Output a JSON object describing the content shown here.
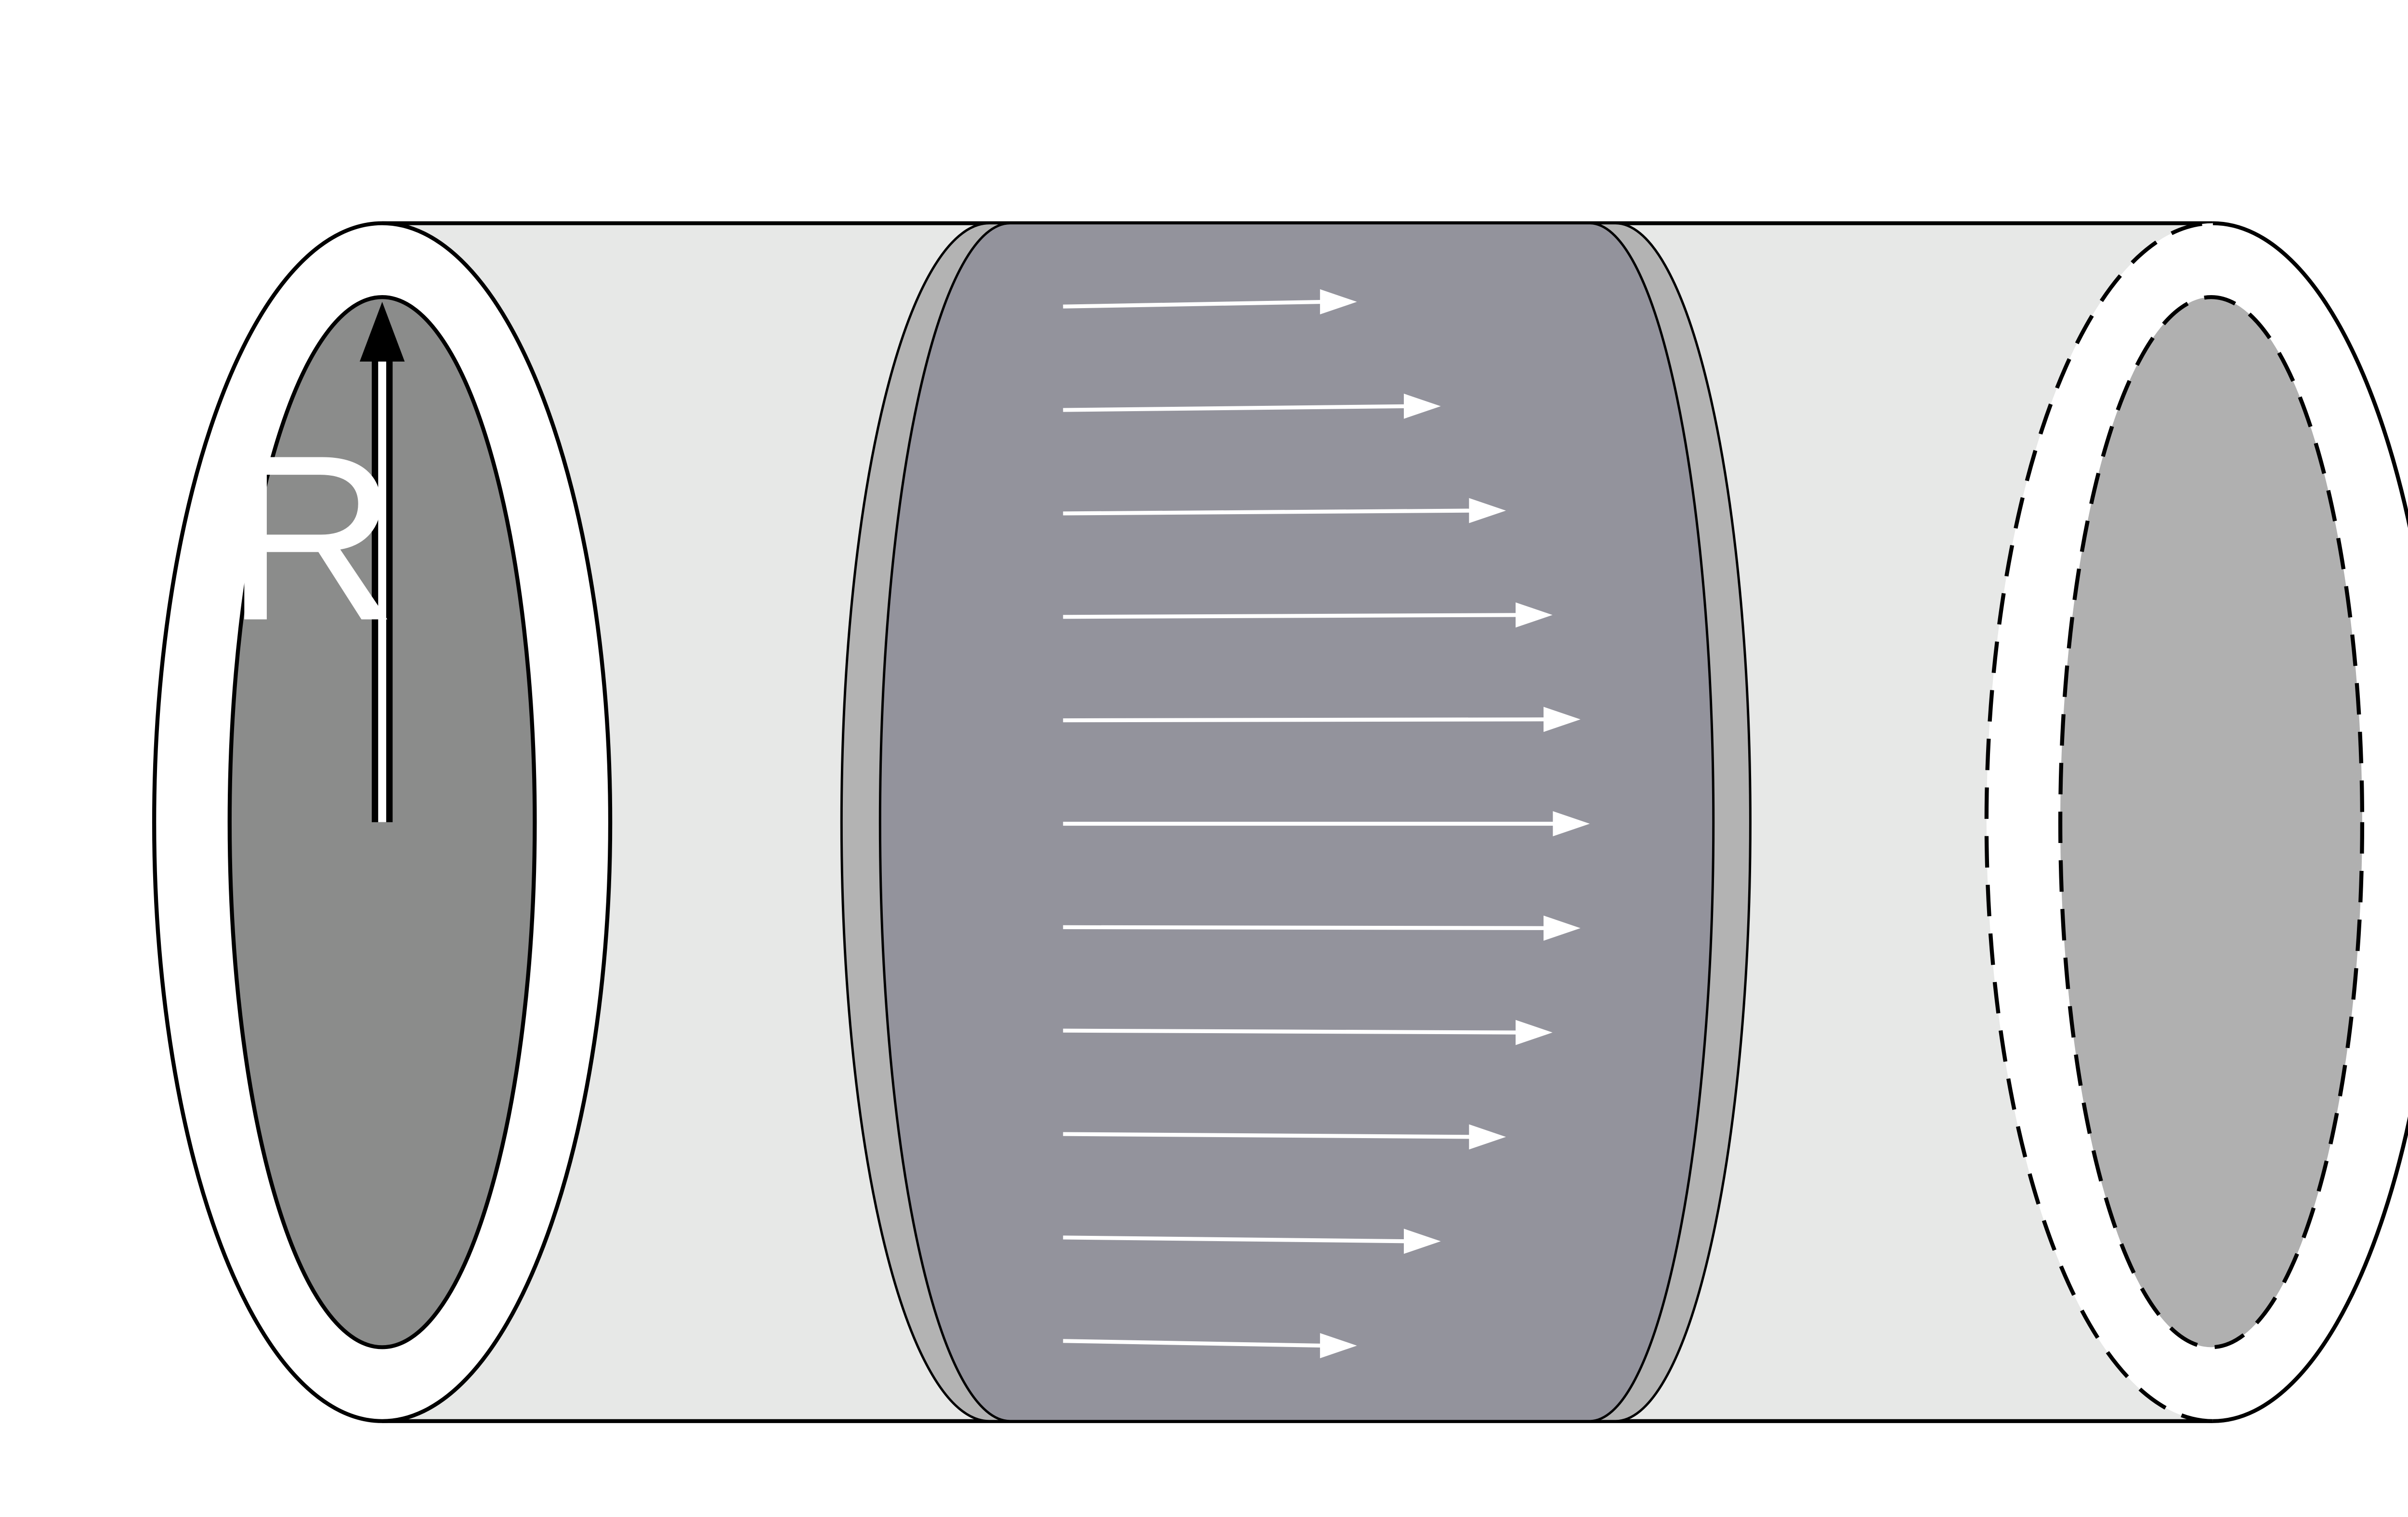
{
  "diagram": {
    "radius_label": "R",
    "flow_arrow_count": 11,
    "flow_profile": "parabolic",
    "colors": {
      "background": "#ffffff",
      "tube_body": "#e7e8e7",
      "tube_wall": "#ffffff",
      "left_lumen": "#8b8c8b",
      "right_lumen": "#b0b0b0",
      "fluid_slab_face": "#93939c",
      "fluid_slab_rim": "#b3b3b3",
      "outline": "#000000",
      "flow_arrows": "#ffffff",
      "radius_arrow_head": "#000000"
    },
    "icons": {
      "radius_arrow": "arrow-up-icon",
      "flow_arrows": "arrow-right-icon"
    }
  }
}
